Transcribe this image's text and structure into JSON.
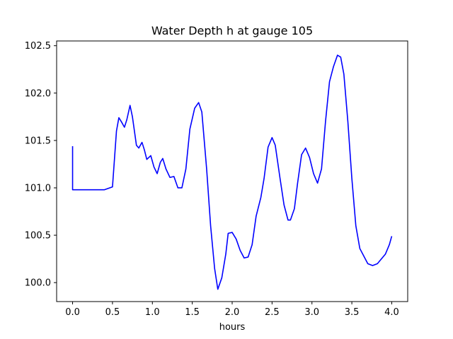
{
  "chart_data": {
    "type": "line",
    "title": "Water Depth h at gauge 105",
    "xlabel": "hours",
    "ylabel": "",
    "xlim": [
      -0.2,
      4.2
    ],
    "ylim": [
      99.8,
      102.55
    ],
    "grid": false,
    "legend": "none",
    "xticks": [
      0.0,
      0.5,
      1.0,
      1.5,
      2.0,
      2.5,
      3.0,
      3.5,
      4.0
    ],
    "xtick_labels": [
      "0.0",
      "0.5",
      "1.0",
      "1.5",
      "2.0",
      "2.5",
      "3.0",
      "3.5",
      "4.0"
    ],
    "yticks": [
      100.0,
      100.5,
      101.0,
      101.5,
      102.0,
      102.5
    ],
    "ytick_labels": [
      "100.0",
      "100.5",
      "101.0",
      "101.5",
      "102.0",
      "102.5"
    ],
    "series": [
      {
        "color": "#0000ff",
        "points": [
          [
            0.0,
            101.44
          ],
          [
            0.0,
            100.98
          ],
          [
            0.1,
            100.98
          ],
          [
            0.25,
            100.98
          ],
          [
            0.4,
            100.98
          ],
          [
            0.5,
            101.01
          ],
          [
            0.55,
            101.6
          ],
          [
            0.58,
            101.74
          ],
          [
            0.61,
            101.7
          ],
          [
            0.65,
            101.64
          ],
          [
            0.68,
            101.72
          ],
          [
            0.72,
            101.87
          ],
          [
            0.75,
            101.75
          ],
          [
            0.8,
            101.45
          ],
          [
            0.83,
            101.42
          ],
          [
            0.87,
            101.48
          ],
          [
            0.9,
            101.4
          ],
          [
            0.93,
            101.3
          ],
          [
            0.98,
            101.34
          ],
          [
            1.02,
            101.22
          ],
          [
            1.06,
            101.15
          ],
          [
            1.1,
            101.27
          ],
          [
            1.13,
            101.31
          ],
          [
            1.17,
            101.2
          ],
          [
            1.22,
            101.11
          ],
          [
            1.27,
            101.12
          ],
          [
            1.32,
            101.0
          ],
          [
            1.37,
            101.0
          ],
          [
            1.42,
            101.2
          ],
          [
            1.47,
            101.62
          ],
          [
            1.53,
            101.84
          ],
          [
            1.58,
            101.9
          ],
          [
            1.62,
            101.8
          ],
          [
            1.68,
            101.2
          ],
          [
            1.73,
            100.6
          ],
          [
            1.78,
            100.15
          ],
          [
            1.82,
            99.93
          ],
          [
            1.87,
            100.05
          ],
          [
            1.92,
            100.3
          ],
          [
            1.95,
            100.52
          ],
          [
            2.0,
            100.53
          ],
          [
            2.05,
            100.46
          ],
          [
            2.1,
            100.34
          ],
          [
            2.15,
            100.26
          ],
          [
            2.2,
            100.27
          ],
          [
            2.25,
            100.4
          ],
          [
            2.3,
            100.7
          ],
          [
            2.36,
            100.9
          ],
          [
            2.4,
            101.1
          ],
          [
            2.45,
            101.43
          ],
          [
            2.5,
            101.53
          ],
          [
            2.54,
            101.45
          ],
          [
            2.6,
            101.1
          ],
          [
            2.65,
            100.82
          ],
          [
            2.7,
            100.66
          ],
          [
            2.73,
            100.66
          ],
          [
            2.78,
            100.78
          ],
          [
            2.82,
            101.05
          ],
          [
            2.87,
            101.35
          ],
          [
            2.92,
            101.42
          ],
          [
            2.97,
            101.32
          ],
          [
            3.02,
            101.15
          ],
          [
            3.07,
            101.05
          ],
          [
            3.12,
            101.2
          ],
          [
            3.17,
            101.7
          ],
          [
            3.22,
            102.12
          ],
          [
            3.27,
            102.28
          ],
          [
            3.32,
            102.4
          ],
          [
            3.36,
            102.38
          ],
          [
            3.4,
            102.2
          ],
          [
            3.45,
            101.7
          ],
          [
            3.5,
            101.1
          ],
          [
            3.55,
            100.6
          ],
          [
            3.6,
            100.36
          ],
          [
            3.65,
            100.28
          ],
          [
            3.7,
            100.2
          ],
          [
            3.76,
            100.18
          ],
          [
            3.82,
            100.2
          ],
          [
            3.87,
            100.25
          ],
          [
            3.92,
            100.3
          ],
          [
            3.97,
            100.4
          ],
          [
            4.0,
            100.49
          ]
        ]
      }
    ]
  }
}
